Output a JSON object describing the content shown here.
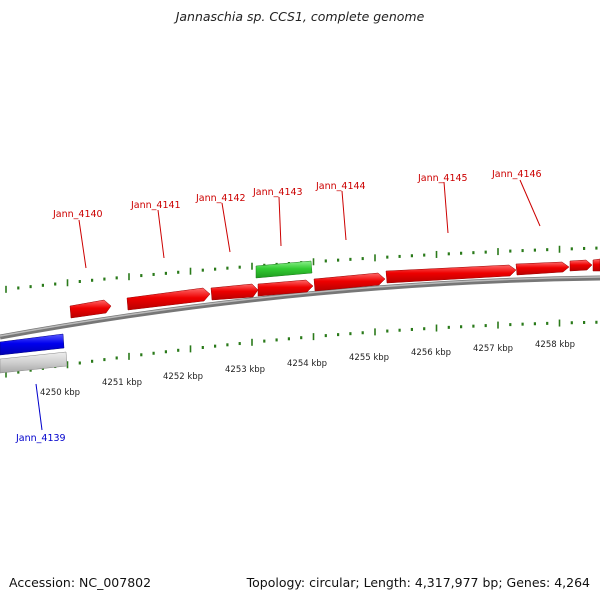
{
  "title": "Jannaschia sp. CCS1, complete genome",
  "footer": {
    "accession": "Accession: NC_007802",
    "summary": "Topology: circular; Length: 4,317,977 bp; Genes: 4,264"
  },
  "colors": {
    "forward_gene": "#ee0000",
    "reverse_gene": "#0000ee",
    "rna_gene": "#33cc33",
    "other_feature": "#c8c8c8",
    "tick": "#2a7a1a",
    "backbone": "#808080",
    "label_forward": "#cc0000",
    "label_reverse": "#0000cc"
  },
  "genes": [
    {
      "label": "Jann_4139",
      "strand": "reverse"
    },
    {
      "label": "Jann_4140",
      "strand": "forward"
    },
    {
      "label": "Jann_4141",
      "strand": "forward"
    },
    {
      "label": "Jann_4142",
      "strand": "forward"
    },
    {
      "label": "Jann_4143",
      "strand": "forward"
    },
    {
      "label": "Jann_4144",
      "strand": "forward"
    },
    {
      "label": "Jann_4145",
      "strand": "forward"
    },
    {
      "label": "Jann_4146",
      "strand": "forward"
    }
  ],
  "kbp_labels": [
    "4250 kbp",
    "4251 kbp",
    "4252 kbp",
    "4253 kbp",
    "4254 kbp",
    "4255 kbp",
    "4256 kbp",
    "4257 kbp",
    "4258 kbp"
  ]
}
